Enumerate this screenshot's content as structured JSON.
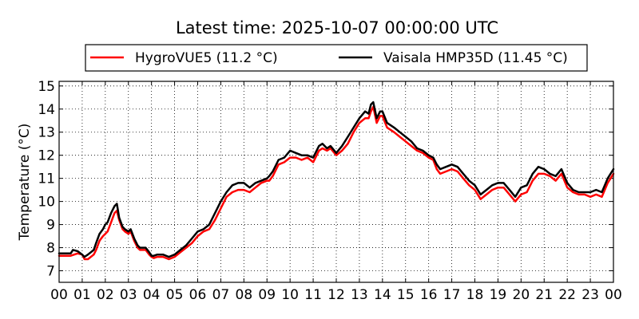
{
  "chart_data": {
    "type": "line",
    "title": "Latest time: 2025-10-07 00:00:00 UTC",
    "ylabel": "Temperature (°C)",
    "xlabel": "",
    "x_tick_labels": [
      "00",
      "01",
      "02",
      "03",
      "04",
      "05",
      "06",
      "07",
      "08",
      "09",
      "10",
      "11",
      "12",
      "13",
      "14",
      "15",
      "16",
      "17",
      "18",
      "19",
      "20",
      "21",
      "22",
      "23",
      "00"
    ],
    "y_ticks": [
      7,
      8,
      9,
      10,
      11,
      12,
      13,
      14,
      15
    ],
    "xlim": [
      0,
      24
    ],
    "ylim": [
      6.5,
      15.2
    ],
    "grid": true,
    "legend_position": "top",
    "series": [
      {
        "name": "HygroVUE5 (11.2 °C)",
        "color": "#ff0000",
        "x": [
          0,
          0.5,
          0.8,
          1.0,
          1.1,
          1.25,
          1.5,
          1.6,
          1.75,
          1.9,
          2.0,
          2.1,
          2.25,
          2.4,
          2.5,
          2.6,
          2.75,
          2.85,
          3.0,
          3.1,
          3.25,
          3.4,
          3.5,
          3.75,
          3.9,
          4.0,
          4.1,
          4.25,
          4.5,
          4.75,
          5.0,
          5.25,
          5.5,
          5.75,
          6.0,
          6.25,
          6.5,
          6.75,
          7.0,
          7.25,
          7.5,
          7.75,
          8.0,
          8.25,
          8.5,
          8.75,
          9.0,
          9.1,
          9.25,
          9.5,
          9.75,
          10.0,
          10.25,
          10.5,
          10.75,
          11.0,
          11.25,
          11.4,
          11.6,
          11.75,
          12.0,
          12.25,
          12.5,
          12.75,
          13.0,
          13.25,
          13.4,
          13.5,
          13.6,
          13.75,
          13.9,
          14.0,
          14.2,
          14.5,
          14.75,
          15.0,
          15.25,
          15.5,
          15.75,
          16.0,
          16.2,
          16.35,
          16.5,
          16.75,
          17.0,
          17.25,
          17.5,
          17.75,
          18.0,
          18.25,
          18.5,
          18.75,
          19.0,
          19.25,
          19.5,
          19.75,
          20.0,
          20.25,
          20.5,
          20.75,
          21.0,
          21.25,
          21.5,
          21.75,
          22.0,
          22.25,
          22.5,
          22.75,
          23.0,
          23.25,
          23.5,
          23.75,
          24.0
        ],
        "y": [
          7.65,
          7.65,
          7.75,
          7.7,
          7.5,
          7.5,
          7.7,
          7.9,
          8.3,
          8.5,
          8.6,
          8.7,
          9.1,
          9.5,
          9.6,
          9.2,
          8.8,
          8.7,
          8.6,
          8.7,
          8.3,
          8.0,
          7.9,
          7.9,
          7.7,
          7.6,
          7.55,
          7.6,
          7.6,
          7.5,
          7.6,
          7.8,
          8.0,
          8.2,
          8.5,
          8.7,
          8.8,
          9.2,
          9.7,
          10.2,
          10.4,
          10.5,
          10.5,
          10.4,
          10.6,
          10.8,
          10.9,
          10.9,
          11.1,
          11.6,
          11.7,
          11.9,
          11.9,
          11.8,
          11.9,
          11.7,
          12.2,
          12.3,
          12.2,
          12.3,
          12.0,
          12.2,
          12.5,
          13.0,
          13.4,
          13.6,
          13.6,
          13.9,
          14.1,
          13.4,
          13.7,
          13.7,
          13.2,
          13.0,
          12.8,
          12.6,
          12.4,
          12.2,
          12.1,
          11.9,
          11.8,
          11.4,
          11.2,
          11.3,
          11.4,
          11.3,
          11.0,
          10.7,
          10.5,
          10.1,
          10.3,
          10.5,
          10.6,
          10.6,
          10.3,
          10.0,
          10.3,
          10.4,
          10.9,
          11.2,
          11.2,
          11.1,
          10.9,
          11.2,
          10.6,
          10.4,
          10.3,
          10.3,
          10.2,
          10.3,
          10.2,
          10.8,
          11.2
        ]
      },
      {
        "name": "Vaisala HMP35D (11.45 °C)",
        "color": "#000000",
        "x": [
          0,
          0.5,
          0.6,
          0.8,
          1.0,
          1.1,
          1.25,
          1.5,
          1.6,
          1.75,
          1.9,
          2.0,
          2.1,
          2.25,
          2.4,
          2.5,
          2.6,
          2.75,
          2.85,
          3.0,
          3.1,
          3.25,
          3.4,
          3.5,
          3.75,
          3.9,
          4.0,
          4.1,
          4.25,
          4.5,
          4.75,
          5.0,
          5.25,
          5.5,
          5.75,
          6.0,
          6.25,
          6.5,
          6.75,
          7.0,
          7.25,
          7.5,
          7.75,
          8.0,
          8.25,
          8.5,
          8.75,
          9.0,
          9.1,
          9.25,
          9.5,
          9.75,
          10.0,
          10.25,
          10.5,
          10.75,
          11.0,
          11.25,
          11.4,
          11.6,
          11.75,
          12.0,
          12.25,
          12.5,
          12.75,
          13.0,
          13.25,
          13.4,
          13.5,
          13.6,
          13.75,
          13.9,
          14.0,
          14.2,
          14.5,
          14.75,
          15.0,
          15.25,
          15.5,
          15.75,
          16.0,
          16.2,
          16.35,
          16.5,
          16.75,
          17.0,
          17.25,
          17.5,
          17.75,
          18.0,
          18.25,
          18.5,
          18.75,
          19.0,
          19.25,
          19.5,
          19.75,
          20.0,
          20.25,
          20.5,
          20.75,
          21.0,
          21.25,
          21.5,
          21.75,
          22.0,
          22.25,
          22.5,
          22.75,
          23.0,
          23.25,
          23.5,
          23.75,
          24.0
        ],
        "y": [
          7.75,
          7.75,
          7.9,
          7.85,
          7.7,
          7.6,
          7.7,
          7.9,
          8.2,
          8.6,
          8.8,
          9.0,
          9.1,
          9.5,
          9.8,
          9.9,
          9.3,
          8.9,
          8.8,
          8.7,
          8.8,
          8.4,
          8.1,
          8.0,
          8.0,
          7.8,
          7.65,
          7.65,
          7.7,
          7.7,
          7.6,
          7.7,
          7.9,
          8.1,
          8.4,
          8.7,
          8.8,
          9.0,
          9.5,
          10.0,
          10.4,
          10.7,
          10.8,
          10.8,
          10.6,
          10.8,
          10.9,
          11.0,
          11.1,
          11.3,
          11.8,
          11.9,
          12.2,
          12.1,
          12.0,
          12.0,
          11.9,
          12.4,
          12.5,
          12.3,
          12.4,
          12.1,
          12.4,
          12.8,
          13.2,
          13.6,
          13.9,
          13.8,
          14.2,
          14.3,
          13.6,
          13.9,
          13.9,
          13.4,
          13.2,
          13.0,
          12.8,
          12.6,
          12.3,
          12.2,
          12.0,
          11.9,
          11.6,
          11.4,
          11.5,
          11.6,
          11.5,
          11.2,
          10.9,
          10.7,
          10.3,
          10.5,
          10.7,
          10.8,
          10.8,
          10.5,
          10.2,
          10.6,
          10.7,
          11.2,
          11.5,
          11.4,
          11.2,
          11.1,
          11.4,
          10.8,
          10.5,
          10.4,
          10.4,
          10.4,
          10.5,
          10.4,
          11.0,
          11.4
        ]
      }
    ]
  }
}
